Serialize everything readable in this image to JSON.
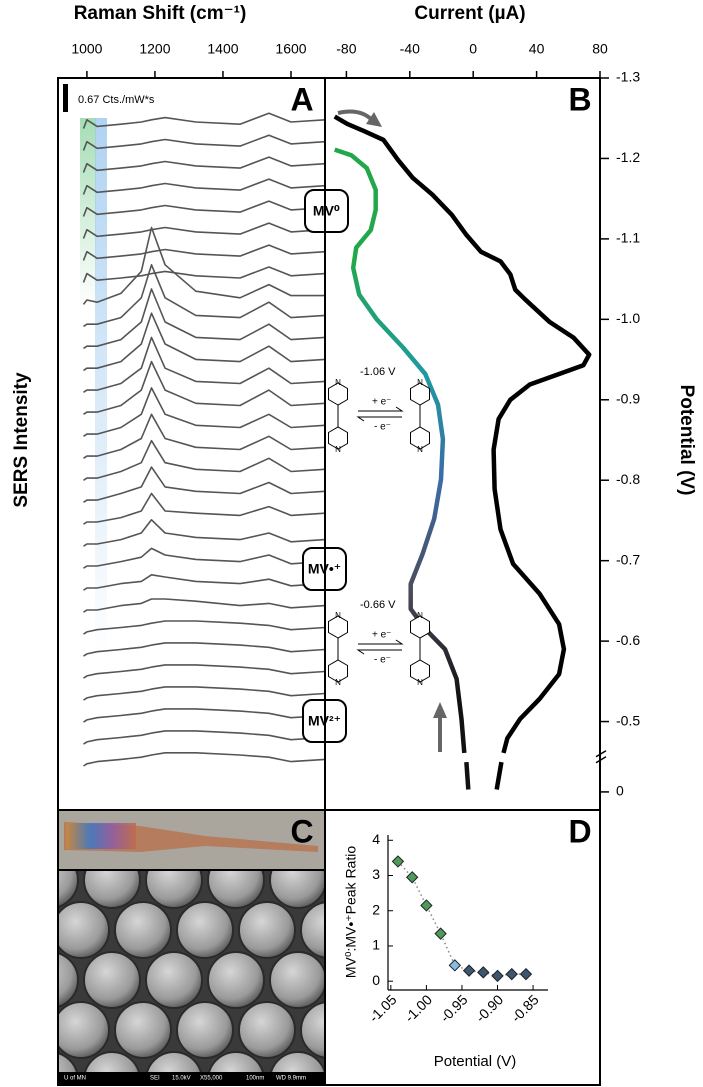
{
  "chart_data": [
    {
      "type": "line",
      "panel_label": "A",
      "x_label": "Raman Shift (cm⁻¹)",
      "y_label": "SERS Intensity",
      "scale_bar_label": "0.67 Cts./mW*s",
      "x": [
        990,
        1000,
        1030,
        1100,
        1160,
        1190,
        1230,
        1320,
        1450,
        1535,
        1600,
        1700
      ],
      "xlim": [
        915,
        1700
      ],
      "xticks": [
        1000,
        1200,
        1400,
        1600
      ],
      "ylim": [
        0,
        33.3
      ],
      "color": "#555555",
      "series": [
        {
          "values": [
            31,
            31.4,
            31.1,
            31.2,
            31.3,
            31.4,
            31.5,
            31.3,
            31.2,
            31.7,
            31.3,
            31.4
          ]
        },
        {
          "values": [
            30,
            30.4,
            30.1,
            30.2,
            30.3,
            30.4,
            30.5,
            30.3,
            30.2,
            30.7,
            30.3,
            30.4
          ]
        },
        {
          "values": [
            29,
            29.4,
            29.1,
            29.2,
            29.3,
            29.4,
            29.5,
            29.3,
            29.2,
            29.7,
            29.3,
            29.4
          ]
        },
        {
          "values": [
            28,
            28.4,
            28.1,
            28.2,
            28.3,
            28.4,
            28.5,
            28.3,
            28.2,
            28.7,
            28.3,
            28.4
          ]
        },
        {
          "values": [
            27,
            27.4,
            27.1,
            27.2,
            27.3,
            27.4,
            27.5,
            27.3,
            27.2,
            27.7,
            27.3,
            27.4
          ]
        },
        {
          "values": [
            26,
            26.4,
            26.1,
            26.2,
            26.3,
            26.4,
            26.5,
            26.3,
            26.2,
            26.7,
            26.3,
            26.4
          ]
        },
        {
          "values": [
            25,
            25.4,
            25.1,
            25.2,
            25.3,
            25.4,
            25.5,
            25.3,
            25.2,
            25.7,
            25.3,
            25.4
          ]
        },
        {
          "values": [
            24,
            24.4,
            24.1,
            24.2,
            24.3,
            24.4,
            24.5,
            24.3,
            24.2,
            24.7,
            24.3,
            24.4
          ]
        },
        {
          "values": [
            23,
            23.2,
            23.1,
            23.5,
            24.5,
            26.5,
            24.8,
            23.6,
            23.3,
            23.9,
            23.4,
            23.4
          ]
        },
        {
          "values": [
            22,
            22.1,
            22.1,
            22.4,
            23.3,
            24.8,
            23.3,
            22.5,
            22.4,
            23.1,
            22.4,
            22.5
          ]
        },
        {
          "values": [
            21,
            21.1,
            21.1,
            21.4,
            22.2,
            23.7,
            22.2,
            21.5,
            21.4,
            22.1,
            21.4,
            21.5
          ]
        },
        {
          "values": [
            20,
            20.1,
            20.1,
            20.4,
            21.2,
            22.6,
            21.2,
            20.5,
            20.4,
            21.1,
            20.4,
            20.5
          ]
        },
        {
          "values": [
            19,
            19.1,
            19.1,
            19.4,
            20.1,
            21.5,
            20.1,
            19.5,
            19.4,
            20.1,
            19.4,
            19.5
          ]
        },
        {
          "values": [
            18,
            18.1,
            18.1,
            18.4,
            19.1,
            20.4,
            19.1,
            18.5,
            18.4,
            19.1,
            18.4,
            18.5
          ]
        },
        {
          "values": [
            17,
            17.1,
            17.1,
            17.4,
            18,
            19.2,
            18,
            17.5,
            17.4,
            18,
            17.4,
            17.5
          ]
        },
        {
          "values": [
            16,
            16.1,
            16.1,
            16.4,
            16.9,
            18,
            16.9,
            16.5,
            16.4,
            17,
            16.4,
            16.5
          ]
        },
        {
          "values": [
            15,
            15.1,
            15.1,
            15.4,
            15.8,
            16.8,
            15.8,
            15.5,
            15.4,
            16,
            15.4,
            15.5
          ]
        },
        {
          "values": [
            14,
            14.1,
            14.1,
            14.4,
            14.7,
            15.6,
            14.7,
            14.5,
            14.4,
            14.9,
            14.4,
            14.5
          ]
        },
        {
          "values": [
            13,
            13.1,
            13.1,
            13.3,
            13.6,
            14.4,
            13.6,
            13.5,
            13.4,
            13.8,
            13.4,
            13.5
          ]
        },
        {
          "values": [
            12,
            12.1,
            12.1,
            12.3,
            12.6,
            13.2,
            12.6,
            12.4,
            12.3,
            12.6,
            12.2,
            12.3
          ]
        },
        {
          "values": [
            11,
            11.1,
            11.1,
            11.3,
            11.5,
            11.9,
            11.6,
            11.4,
            11.3,
            11.6,
            11.2,
            11.3
          ]
        },
        {
          "values": [
            10,
            10.1,
            10.1,
            10.3,
            10.4,
            10.7,
            10.6,
            10.4,
            10.3,
            10.5,
            10.2,
            10.3
          ]
        },
        {
          "values": [
            9,
            9.1,
            9.1,
            9.3,
            9.4,
            9.6,
            9.6,
            9.5,
            9.3,
            9.4,
            9.2,
            9.3
          ]
        },
        {
          "values": [
            8,
            8.1,
            8.2,
            8.3,
            8.4,
            8.5,
            8.6,
            8.6,
            8.5,
            8.4,
            8.2,
            8.3
          ]
        },
        {
          "values": [
            7,
            7.1,
            7.2,
            7.3,
            7.4,
            7.5,
            7.6,
            7.6,
            7.5,
            7.4,
            7.2,
            7.3
          ]
        },
        {
          "values": [
            6,
            6.1,
            6.2,
            6.3,
            6.4,
            6.5,
            6.6,
            6.6,
            6.5,
            6.4,
            6.2,
            6.3
          ]
        },
        {
          "values": [
            5,
            5.1,
            5.2,
            5.3,
            5.4,
            5.5,
            5.6,
            5.6,
            5.5,
            5.4,
            5.2,
            5.3
          ]
        },
        {
          "values": [
            4,
            4.1,
            4.2,
            4.3,
            4.4,
            4.5,
            4.6,
            4.6,
            4.5,
            4.4,
            4.2,
            4.3
          ]
        },
        {
          "values": [
            3,
            3.1,
            3.2,
            3.3,
            3.4,
            3.5,
            3.6,
            3.6,
            3.5,
            3.4,
            3.2,
            3.3
          ]
        },
        {
          "values": [
            2,
            2.1,
            2.2,
            2.3,
            2.4,
            2.5,
            2.6,
            2.6,
            2.5,
            2.4,
            2.2,
            2.3
          ]
        }
      ]
    },
    {
      "type": "line",
      "panel_label": "B",
      "x_label": "Current (µA)",
      "y_label": "Potential (V)",
      "xlim": [
        -93.5,
        80
      ],
      "xticks": [
        -80,
        -40,
        0,
        40,
        80
      ],
      "ylim": [
        -1.3,
        0.02
      ],
      "yaxis_inverted": true,
      "y_break": [
        -0.46,
        -0.04
      ],
      "yticks": [
        -1.3,
        -1.2,
        -1.1,
        {
          "value": -1,
          "label": "-1.0"
        },
        -0.9,
        -0.8,
        -0.7,
        -0.6,
        -0.5,
        0
      ],
      "series": [
        {
          "color": "#000000",
          "x": [
            -87.4,
            -79.4,
            -68.9,
            -56.6,
            -47.4,
            -38.2,
            -25.8,
            -13.5,
            -4.3,
            4.9,
            17.2,
            23.4,
            26.5,
            32.6,
            48.0,
            63.4,
            73.2,
            69.5,
            54.2,
            35.7,
            23.4,
            16.0,
            12.9,
            13.5,
            17.2,
            25.2,
            41.8,
            54.2,
            57.2,
            54.2,
            41.8,
            29.5,
            21.5,
            19.1,
            null,
            17.8,
            14.8
          ],
          "values": [
            -1.252,
            -1.243,
            -1.234,
            -1.223,
            -1.198,
            -1.176,
            -1.155,
            -1.13,
            -1.105,
            -1.084,
            -1.072,
            -1.056,
            -1.037,
            -1.025,
            -0.997,
            -0.977,
            -0.956,
            -0.943,
            -0.932,
            -0.919,
            -0.9,
            -0.876,
            -0.838,
            -0.789,
            -0.739,
            -0.696,
            -0.659,
            -0.621,
            -0.59,
            -0.559,
            -0.528,
            -0.503,
            -0.479,
            -0.461,
            null,
            -0.037,
            -0.003
          ]
        },
        {
          "colors": [
            "#22a84b",
            "#22a84b",
            "#1f9a9e",
            "#3b6ca8",
            "#4c4c5c",
            "#111111"
          ],
          "x": [
            -87.4,
            -76.9,
            -67.1,
            -61.5,
            -61.5,
            -64.6,
            -73.8,
            -75.7,
            -72.0,
            -60.9,
            -44.3,
            -30.2,
            -22.2,
            -19.1,
            -20.3,
            -24.6,
            -32.0,
            -39.4,
            -39.4,
            -30.2,
            -17.8,
            -10.5,
            -7.4,
            -5.6,
            null,
            -4.3,
            -3.1
          ],
          "values": [
            -1.211,
            -1.204,
            -1.188,
            -1.161,
            -1.136,
            -1.111,
            -1.089,
            -1.064,
            -1.031,
            -1.0,
            -0.965,
            -0.932,
            -0.894,
            -0.851,
            -0.801,
            -0.752,
            -0.708,
            -0.671,
            -0.64,
            -0.615,
            -0.59,
            -0.553,
            -0.503,
            -0.461,
            null,
            -0.037,
            -0.003
          ]
        }
      ],
      "states": [
        "MV⁰",
        "MV•⁺",
        "MV²⁺"
      ],
      "reactions": [
        {
          "potential": "-1.06 V",
          "forward": "+ e⁻",
          "reverse": "- e⁻"
        },
        {
          "potential": "-0.66 V",
          "forward": "+ e⁻",
          "reverse": "- e⁻"
        }
      ],
      "atom_label": "N"
    },
    {
      "type": "scatter",
      "panel_label": "D",
      "x_label": "Potential (V)",
      "y_label": "MV⁰:MV•⁺Peak Ratio",
      "x": [
        -1.04,
        -1.02,
        -1.0,
        -0.98,
        -0.96,
        -0.94,
        -0.92,
        -0.9,
        -0.88,
        -0.86
      ],
      "values": [
        3.4,
        2.95,
        2.15,
        1.35,
        0.45,
        0.3,
        0.25,
        0.15,
        0.2,
        0.2
      ],
      "colors": [
        "#4e9a5a",
        "#4e9a5a",
        "#4e9a5a",
        "#4e9a5a",
        "#86bde6",
        "#3d5670",
        "#3d5670",
        "#3d5670",
        "#3d5670",
        "#3d5670"
      ],
      "xlim": [
        -1.054,
        -0.829
      ],
      "xticks": [
        -1.05,
        {
          "value": -1,
          "label": "-1.00"
        },
        -0.95,
        {
          "value": -0.9,
          "label": "-0.90"
        },
        -0.85
      ],
      "ylim": [
        -0.25,
        4.15
      ],
      "yticks": [
        0,
        1,
        2,
        3,
        4
      ],
      "line_style": "dotted"
    }
  ],
  "panel_c": {
    "panel_label": "C",
    "sem_info": [
      "U of MN",
      "SEI",
      "15.0kV",
      "X55,000",
      "100nm",
      "WD 9.9mm"
    ]
  }
}
